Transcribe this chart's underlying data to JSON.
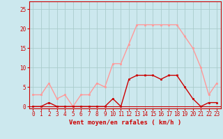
{
  "hours": [
    0,
    1,
    2,
    3,
    4,
    5,
    6,
    7,
    8,
    9,
    10,
    11,
    12,
    13,
    14,
    15,
    16,
    17,
    18,
    19,
    20,
    21,
    22,
    23
  ],
  "wind_avg": [
    0,
    0,
    1,
    0,
    0,
    0,
    0,
    0,
    0,
    0,
    2,
    0,
    7,
    8,
    8,
    8,
    7,
    8,
    8,
    5,
    2,
    0,
    1,
    1
  ],
  "wind_gust": [
    3,
    3,
    6,
    2,
    3,
    0,
    3,
    3,
    6,
    5,
    11,
    11,
    16,
    21,
    21,
    21,
    21,
    21,
    21,
    18,
    15,
    10,
    3,
    6
  ],
  "bg_color": "#cce8ee",
  "grid_color": "#aacccc",
  "line_avg_color": "#cc0000",
  "line_gust_color": "#ff9999",
  "xlabel": "Vent moyen/en rafales ( km/h )",
  "ylabel_ticks": [
    0,
    5,
    10,
    15,
    20,
    25
  ],
  "ylim": [
    -0.5,
    27
  ],
  "xlim": [
    -0.5,
    23.5
  ]
}
